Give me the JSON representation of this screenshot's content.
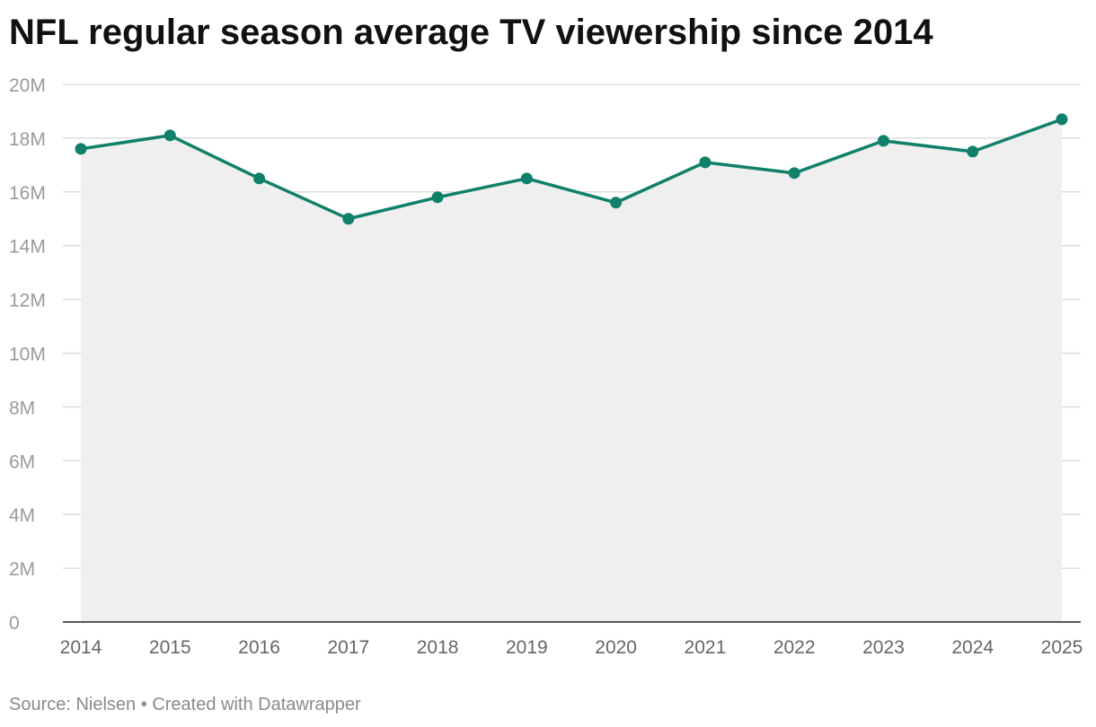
{
  "title": "NFL regular season average TV viewership since 2014",
  "footer": {
    "source": "Source: Nielsen",
    "separator": "•",
    "credit": "Created with Datawrapper"
  },
  "colors": {
    "line": "#10806a",
    "area": "#efefef",
    "grid": "#dddddd",
    "axis": "#222222"
  },
  "chart_data": {
    "type": "line",
    "title": "NFL regular season average TV viewership since 2014",
    "xlabel": "",
    "ylabel": "",
    "x": [
      2014,
      2015,
      2016,
      2017,
      2018,
      2019,
      2020,
      2021,
      2022,
      2023,
      2024,
      2025
    ],
    "x_tick_labels": [
      "2014",
      "2015",
      "2016",
      "2017",
      "2018",
      "2019",
      "2020",
      "2021",
      "2022",
      "2023",
      "2024",
      "2025"
    ],
    "series": [
      {
        "values": [
          17.6,
          18.1,
          16.5,
          15.0,
          15.8,
          16.5,
          15.6,
          17.1,
          16.7,
          17.9,
          17.5,
          18.7
        ]
      }
    ],
    "units": "millions of viewers",
    "ylim": [
      0,
      20
    ],
    "y_ticks": [
      0,
      2,
      4,
      6,
      8,
      10,
      12,
      14,
      16,
      18,
      20
    ],
    "y_tick_labels": [
      "0",
      "2M",
      "4M",
      "6M",
      "8M",
      "10M",
      "12M",
      "14M",
      "16M",
      "18M",
      "20M"
    ],
    "grid": true,
    "area_fill": true,
    "markers": true,
    "legend": "none"
  }
}
